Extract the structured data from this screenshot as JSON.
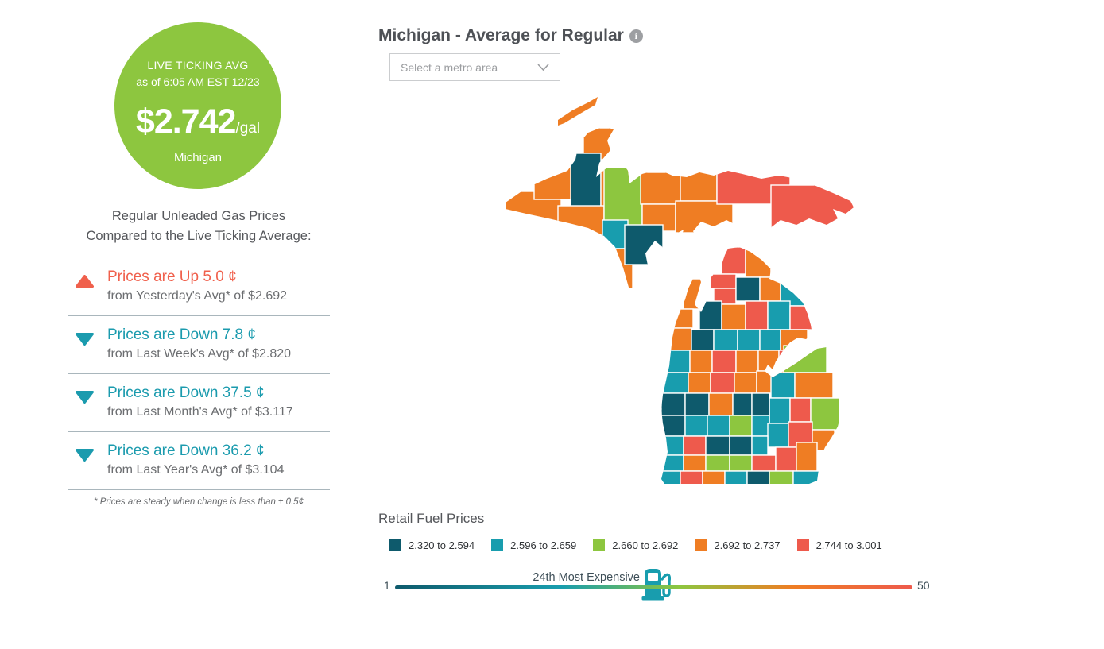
{
  "ticker": {
    "bg_color": "#8DC63F",
    "line1": "LIVE TICKING AVG",
    "line2": "as of 6:05 AM EST 12/23",
    "price": "$2.742",
    "unit": "/gal",
    "region": "Michigan"
  },
  "comparison": {
    "heading_line1": "Regular Unleaded Gas Prices",
    "heading_line2": "Compared to the Live Ticking Average:",
    "items": [
      {
        "direction": "up",
        "color": "#F0604C",
        "label": "Prices are Up 5.0 ¢",
        "sub": "from Yesterday's Avg* of $2.692"
      },
      {
        "direction": "down",
        "color": "#1B9BAE",
        "label": "Prices are Down 7.8 ¢",
        "sub": "from Last Week's Avg* of $2.820"
      },
      {
        "direction": "down",
        "color": "#1B9BAE",
        "label": "Prices are Down 37.5 ¢",
        "sub": "from Last Month's Avg* of $3.117"
      },
      {
        "direction": "down",
        "color": "#1B9BAE",
        "label": "Prices are Down 36.2 ¢",
        "sub": "from Last Year's Avg* of $3.104"
      }
    ],
    "footnote": "* Prices are steady when change is less than ± 0.5¢"
  },
  "header": {
    "title": "Michigan - Average for Regular",
    "info_icon": "i",
    "dropdown_placeholder": "Select a metro area"
  },
  "legend": {
    "title": "Retail Fuel Prices",
    "items": [
      {
        "color": "#0E5A6C",
        "label": "2.320 to 2.594"
      },
      {
        "color": "#189DAE",
        "label": "2.596 to 2.659"
      },
      {
        "color": "#8DC63F",
        "label": "2.660 to 2.692"
      },
      {
        "color": "#EF7D23",
        "label": "2.692 to 2.737"
      },
      {
        "color": "#EE5A4C",
        "label": "2.744 to 3.001"
      }
    ]
  },
  "rank": {
    "label": "24th Most Expensive",
    "min": "1",
    "max": "50",
    "value": 24,
    "pump_color": "#189DAE"
  },
  "map": {
    "palette": {
      "d": "#0E5A6C",
      "t": "#189DAE",
      "g": "#8DC63F",
      "o": "#EF7D23",
      "r": "#EE5A4C"
    },
    "isle_royale_color": "o",
    "up_counties": [
      [
        "o",
        16,
        136,
        72,
        46
      ],
      [
        "o",
        54,
        104,
        60,
        42
      ],
      [
        "o",
        116,
        56,
        48,
        40
      ],
      [
        "d",
        100,
        88,
        38,
        72
      ],
      [
        "o",
        138,
        108,
        36,
        56
      ],
      [
        "o",
        84,
        154,
        58,
        52
      ],
      [
        "g",
        142,
        106,
        48,
        74
      ],
      [
        "t",
        140,
        172,
        32,
        36
      ],
      [
        "o",
        144,
        208,
        34,
        50
      ],
      [
        "o",
        188,
        112,
        50,
        40
      ],
      [
        "o",
        190,
        152,
        42,
        34
      ],
      [
        "d",
        168,
        178,
        48,
        50
      ],
      [
        "o",
        238,
        110,
        46,
        38
      ],
      [
        "o",
        232,
        148,
        72,
        40
      ],
      [
        "r",
        284,
        106,
        92,
        46
      ],
      [
        "r",
        352,
        128,
        108,
        58
      ]
    ],
    "lp_counties": [
      [
        "r",
        290,
        206,
        30,
        34
      ],
      [
        "o",
        320,
        206,
        32,
        38
      ],
      [
        "o",
        352,
        216,
        44,
        30
      ],
      [
        "r",
        276,
        240,
        32,
        18
      ],
      [
        "r",
        280,
        258,
        28,
        20
      ],
      [
        "d",
        308,
        244,
        30,
        30
      ],
      [
        "o",
        338,
        244,
        26,
        30
      ],
      [
        "t",
        364,
        244,
        36,
        36
      ],
      [
        "o",
        242,
        246,
        26,
        38
      ],
      [
        "o",
        226,
        284,
        28,
        24
      ],
      [
        "d",
        262,
        274,
        28,
        36
      ],
      [
        "o",
        290,
        278,
        30,
        32
      ],
      [
        "r",
        320,
        274,
        28,
        36
      ],
      [
        "t",
        348,
        274,
        28,
        36
      ],
      [
        "r",
        376,
        280,
        30,
        30
      ],
      [
        "o",
        222,
        308,
        30,
        28
      ],
      [
        "d",
        252,
        310,
        28,
        26
      ],
      [
        "t",
        280,
        310,
        30,
        26
      ],
      [
        "t",
        310,
        310,
        28,
        26
      ],
      [
        "t",
        338,
        310,
        26,
        26
      ],
      [
        "o",
        364,
        310,
        34,
        26
      ],
      [
        "t",
        218,
        336,
        32,
        28
      ],
      [
        "o",
        250,
        336,
        28,
        28
      ],
      [
        "r",
        278,
        336,
        30,
        28
      ],
      [
        "o",
        308,
        336,
        28,
        28
      ],
      [
        "o",
        336,
        336,
        26,
        26
      ],
      [
        "r",
        362,
        336,
        32,
        26
      ],
      [
        "t",
        216,
        364,
        32,
        26
      ],
      [
        "o",
        248,
        364,
        28,
        26
      ],
      [
        "r",
        276,
        364,
        30,
        26
      ],
      [
        "o",
        306,
        364,
        28,
        26
      ],
      [
        "o",
        334,
        362,
        24,
        28
      ],
      [
        "o",
        358,
        362,
        24,
        28
      ],
      [
        "g",
        368,
        330,
        54,
        34
      ],
      [
        "t",
        352,
        364,
        30,
        32
      ],
      [
        "o",
        382,
        364,
        48,
        32
      ],
      [
        "t",
        350,
        396,
        26,
        32
      ],
      [
        "r",
        376,
        396,
        26,
        30
      ],
      [
        "g",
        402,
        396,
        36,
        40
      ],
      [
        "d",
        214,
        390,
        30,
        28
      ],
      [
        "d",
        244,
        390,
        30,
        28
      ],
      [
        "o",
        274,
        390,
        30,
        28
      ],
      [
        "d",
        304,
        390,
        24,
        28
      ],
      [
        "d",
        328,
        390,
        22,
        28
      ],
      [
        "d",
        212,
        418,
        32,
        26
      ],
      [
        "t",
        244,
        418,
        28,
        26
      ],
      [
        "t",
        272,
        418,
        28,
        26
      ],
      [
        "g",
        300,
        418,
        28,
        26
      ],
      [
        "t",
        328,
        418,
        22,
        26
      ],
      [
        "t",
        348,
        428,
        26,
        30
      ],
      [
        "r",
        374,
        426,
        30,
        32
      ],
      [
        "o",
        404,
        436,
        28,
        26
      ],
      [
        "t",
        214,
        444,
        28,
        24
      ],
      [
        "r",
        242,
        444,
        28,
        24
      ],
      [
        "d",
        270,
        444,
        30,
        24
      ],
      [
        "d",
        300,
        444,
        28,
        24
      ],
      [
        "t",
        328,
        444,
        20,
        24
      ],
      [
        "t",
        214,
        468,
        28,
        20
      ],
      [
        "o",
        242,
        468,
        28,
        20
      ],
      [
        "g",
        270,
        468,
        30,
        20
      ],
      [
        "g",
        300,
        468,
        28,
        20
      ],
      [
        "r",
        328,
        468,
        30,
        20
      ],
      [
        "r",
        358,
        458,
        26,
        30
      ],
      [
        "o",
        384,
        452,
        26,
        36
      ],
      [
        "t",
        212,
        488,
        26,
        18
      ],
      [
        "r",
        238,
        488,
        28,
        18
      ],
      [
        "o",
        266,
        488,
        28,
        18
      ],
      [
        "t",
        294,
        488,
        28,
        18
      ],
      [
        "d",
        322,
        488,
        28,
        18
      ],
      [
        "g",
        350,
        488,
        30,
        18
      ],
      [
        "t",
        380,
        488,
        34,
        18
      ]
    ]
  }
}
